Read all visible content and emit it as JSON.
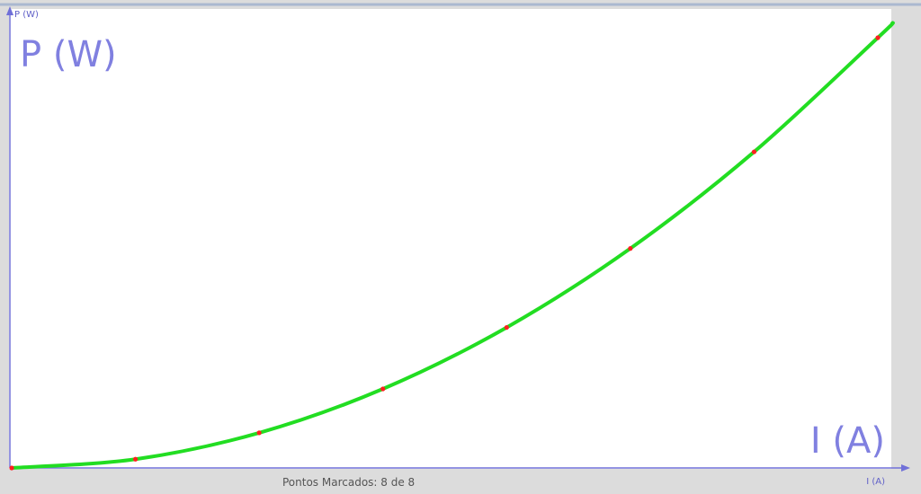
{
  "chart_data": {
    "type": "line",
    "title": "",
    "xlabel": "I (A)",
    "ylabel": "P (W)",
    "x_axis_tag": "I (A)",
    "y_axis_tag": "P (W)",
    "xlim": [
      0,
      7
    ],
    "ylim": [
      0,
      49
    ],
    "grid": false,
    "series": [
      {
        "points": [
          {
            "x": 0,
            "y": 0
          },
          {
            "x": 1,
            "y": 1
          },
          {
            "x": 2,
            "y": 4
          },
          {
            "x": 3,
            "y": 9
          },
          {
            "x": 4,
            "y": 16
          },
          {
            "x": 5,
            "y": 25
          },
          {
            "x": 6,
            "y": 36
          },
          {
            "x": 7,
            "y": 49
          }
        ],
        "curve_color": "#22dd22",
        "marker_color": "#ff2020"
      }
    ]
  },
  "status": {
    "text": "Pontos Marcados: 8 de 8"
  },
  "colors": {
    "axis": "#7070d8",
    "frame": "#aab8d0",
    "background": "#dcdcdc",
    "plot_area": "#ffffff",
    "label": "#8080e0"
  }
}
